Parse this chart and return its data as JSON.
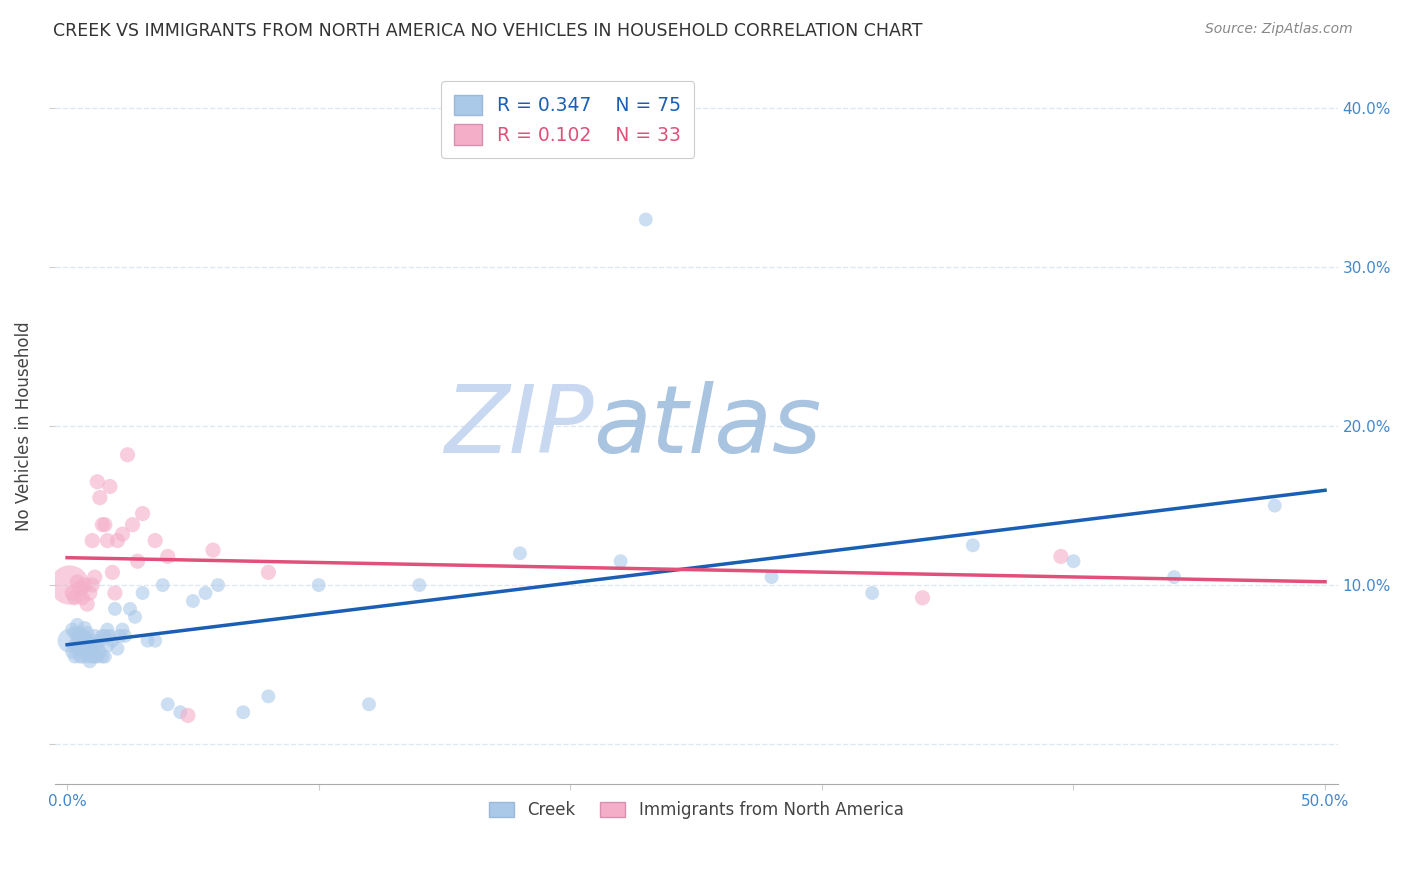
{
  "title": "CREEK VS IMMIGRANTS FROM NORTH AMERICA NO VEHICLES IN HOUSEHOLD CORRELATION CHART",
  "source": "Source: ZipAtlas.com",
  "ylabel": "No Vehicles in Household",
  "xlim": [
    -0.005,
    0.505
  ],
  "ylim": [
    -0.025,
    0.425
  ],
  "xticks": [
    0.0,
    0.1,
    0.2,
    0.3,
    0.4,
    0.5
  ],
  "yticks": [
    0.0,
    0.1,
    0.2,
    0.3,
    0.4
  ],
  "xtick_labels": [
    "0.0%",
    "",
    "",
    "",
    "",
    "50.0%"
  ],
  "ytick_labels_left": [
    "",
    "",
    "",
    "",
    ""
  ],
  "ytick_labels_right": [
    "",
    "10.0%",
    "20.0%",
    "30.0%",
    "40.0%"
  ],
  "creek_R": 0.347,
  "creek_N": 75,
  "immigrants_R": 0.102,
  "immigrants_N": 33,
  "creek_color": "#aac8e8",
  "creek_line_color": "#1a5fb4",
  "immigrants_color": "#f4aec8",
  "immigrants_line_color": "#e0507a",
  "watermark_zip_color": "#c8d8ee",
  "watermark_atlas_color": "#b0c8e0",
  "background_color": "#ffffff",
  "grid_color": "#dde8f4",
  "creek_x": [
    0.001,
    0.002,
    0.002,
    0.003,
    0.003,
    0.003,
    0.004,
    0.004,
    0.004,
    0.005,
    0.005,
    0.005,
    0.005,
    0.006,
    0.006,
    0.006,
    0.007,
    0.007,
    0.007,
    0.007,
    0.008,
    0.008,
    0.008,
    0.008,
    0.009,
    0.009,
    0.009,
    0.01,
    0.01,
    0.01,
    0.011,
    0.011,
    0.011,
    0.012,
    0.012,
    0.013,
    0.013,
    0.014,
    0.014,
    0.015,
    0.015,
    0.016,
    0.016,
    0.017,
    0.018,
    0.019,
    0.02,
    0.021,
    0.022,
    0.023,
    0.025,
    0.027,
    0.03,
    0.032,
    0.035,
    0.038,
    0.04,
    0.045,
    0.05,
    0.055,
    0.06,
    0.07,
    0.08,
    0.1,
    0.12,
    0.14,
    0.18,
    0.22,
    0.23,
    0.28,
    0.32,
    0.36,
    0.4,
    0.44,
    0.48
  ],
  "creek_y": [
    0.065,
    0.058,
    0.072,
    0.055,
    0.062,
    0.07,
    0.06,
    0.067,
    0.075,
    0.055,
    0.06,
    0.065,
    0.07,
    0.055,
    0.062,
    0.068,
    0.058,
    0.063,
    0.068,
    0.073,
    0.055,
    0.06,
    0.065,
    0.07,
    0.052,
    0.058,
    0.063,
    0.055,
    0.06,
    0.065,
    0.055,
    0.062,
    0.068,
    0.055,
    0.062,
    0.058,
    0.065,
    0.055,
    0.068,
    0.055,
    0.068,
    0.062,
    0.072,
    0.068,
    0.065,
    0.085,
    0.06,
    0.068,
    0.072,
    0.068,
    0.085,
    0.08,
    0.095,
    0.065,
    0.065,
    0.1,
    0.025,
    0.02,
    0.09,
    0.095,
    0.1,
    0.02,
    0.03,
    0.1,
    0.025,
    0.1,
    0.12,
    0.115,
    0.33,
    0.105,
    0.095,
    0.125,
    0.115,
    0.105,
    0.15
  ],
  "creek_sizes": [
    300,
    100,
    100,
    100,
    100,
    100,
    100,
    100,
    100,
    100,
    100,
    100,
    100,
    100,
    100,
    100,
    100,
    100,
    100,
    100,
    100,
    100,
    100,
    100,
    100,
    100,
    100,
    100,
    100,
    100,
    100,
    100,
    100,
    100,
    100,
    100,
    100,
    100,
    100,
    100,
    100,
    100,
    100,
    100,
    100,
    100,
    100,
    100,
    100,
    100,
    100,
    100,
    100,
    100,
    100,
    100,
    100,
    100,
    100,
    100,
    100,
    100,
    100,
    100,
    100,
    100,
    100,
    100,
    100,
    100,
    100,
    100,
    100,
    100,
    100
  ],
  "immigrants_x": [
    0.001,
    0.002,
    0.003,
    0.004,
    0.005,
    0.006,
    0.007,
    0.008,
    0.009,
    0.01,
    0.01,
    0.011,
    0.012,
    0.013,
    0.014,
    0.015,
    0.016,
    0.017,
    0.018,
    0.019,
    0.02,
    0.022,
    0.024,
    0.026,
    0.028,
    0.03,
    0.035,
    0.04,
    0.048,
    0.058,
    0.08,
    0.34,
    0.395
  ],
  "immigrants_y": [
    0.1,
    0.095,
    0.092,
    0.102,
    0.098,
    0.092,
    0.1,
    0.088,
    0.095,
    0.1,
    0.128,
    0.105,
    0.165,
    0.155,
    0.138,
    0.138,
    0.128,
    0.162,
    0.108,
    0.095,
    0.128,
    0.132,
    0.182,
    0.138,
    0.115,
    0.145,
    0.128,
    0.118,
    0.018,
    0.122,
    0.108,
    0.092,
    0.118
  ],
  "immigrants_sizes": [
    800,
    120,
    120,
    120,
    120,
    120,
    120,
    120,
    120,
    120,
    120,
    120,
    120,
    120,
    120,
    120,
    120,
    120,
    120,
    120,
    120,
    120,
    120,
    120,
    120,
    120,
    120,
    120,
    120,
    120,
    120,
    120,
    120
  ]
}
